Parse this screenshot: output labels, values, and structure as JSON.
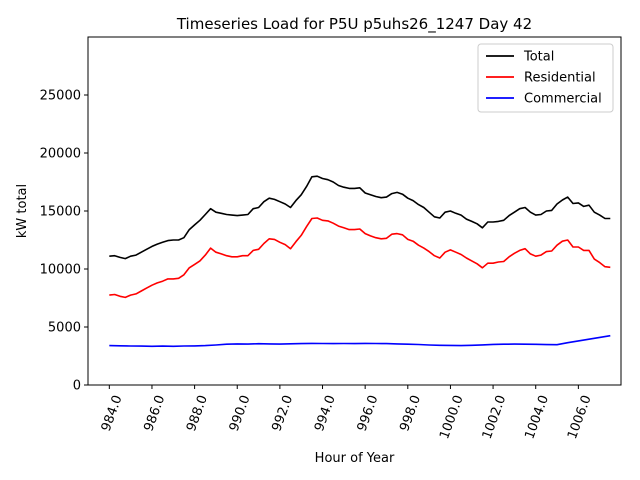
{
  "chart_data": {
    "type": "line",
    "title": "Timeseries Load for P5U p5uhs26_1247  Day 42",
    "xlabel": "Hour of Year",
    "ylabel": "kW total",
    "xlim": [
      983.0,
      1008.0
    ],
    "ylim": [
      0,
      30000
    ],
    "xticks": [
      984.0,
      986.0,
      988.0,
      990.0,
      992.0,
      994.0,
      996.0,
      998.0,
      1000.0,
      1002.0,
      1004.0,
      1006.0
    ],
    "xtick_labels": [
      "984.0",
      "986.0",
      "988.0",
      "990.0",
      "992.0",
      "994.0",
      "996.0",
      "998.0",
      "1000.0",
      "1002.0",
      "1004.0",
      "1006.0"
    ],
    "yticks": [
      0,
      5000,
      10000,
      15000,
      20000,
      25000
    ],
    "ytick_labels": [
      "0",
      "5000",
      "10000",
      "15000",
      "20000",
      "25000"
    ],
    "legend_position": "top-right",
    "series": [
      {
        "name": "Total",
        "color": "#000000",
        "points": [
          [
            984.0,
            11100
          ],
          [
            984.25,
            11150
          ],
          [
            984.5,
            11000
          ],
          [
            984.75,
            10900
          ],
          [
            985.0,
            11100
          ],
          [
            985.25,
            11200
          ],
          [
            985.5,
            11450
          ],
          [
            985.75,
            11700
          ],
          [
            986.0,
            11950
          ],
          [
            986.25,
            12150
          ],
          [
            986.5,
            12300
          ],
          [
            986.75,
            12450
          ],
          [
            987.0,
            12500
          ],
          [
            987.25,
            12500
          ],
          [
            987.5,
            12700
          ],
          [
            987.75,
            13400
          ],
          [
            988.0,
            13800
          ],
          [
            988.25,
            14200
          ],
          [
            988.5,
            14700
          ],
          [
            988.75,
            15200
          ],
          [
            989.0,
            14900
          ],
          [
            989.25,
            14800
          ],
          [
            989.5,
            14700
          ],
          [
            989.75,
            14650
          ],
          [
            990.0,
            14600
          ],
          [
            990.25,
            14650
          ],
          [
            990.5,
            14700
          ],
          [
            990.75,
            15200
          ],
          [
            991.0,
            15300
          ],
          [
            991.25,
            15800
          ],
          [
            991.5,
            16100
          ],
          [
            991.75,
            16000
          ],
          [
            992.0,
            15800
          ],
          [
            992.25,
            15600
          ],
          [
            992.5,
            15300
          ],
          [
            992.75,
            15900
          ],
          [
            993.0,
            16400
          ],
          [
            993.25,
            17100
          ],
          [
            993.5,
            17950
          ],
          [
            993.75,
            18000
          ],
          [
            994.0,
            17800
          ],
          [
            994.25,
            17700
          ],
          [
            994.5,
            17500
          ],
          [
            994.75,
            17200
          ],
          [
            995.0,
            17050
          ],
          [
            995.25,
            16950
          ],
          [
            995.5,
            16950
          ],
          [
            995.75,
            17000
          ],
          [
            996.0,
            16550
          ],
          [
            996.25,
            16400
          ],
          [
            996.5,
            16250
          ],
          [
            996.75,
            16150
          ],
          [
            997.0,
            16200
          ],
          [
            997.25,
            16500
          ],
          [
            997.5,
            16600
          ],
          [
            997.75,
            16450
          ],
          [
            998.0,
            16100
          ],
          [
            998.25,
            15900
          ],
          [
            998.5,
            15550
          ],
          [
            998.75,
            15300
          ],
          [
            999.0,
            14900
          ],
          [
            999.25,
            14500
          ],
          [
            999.5,
            14400
          ],
          [
            999.75,
            14900
          ],
          [
            1000.0,
            15000
          ],
          [
            1000.25,
            14800
          ],
          [
            1000.5,
            14650
          ],
          [
            1000.75,
            14300
          ],
          [
            1001.0,
            14100
          ],
          [
            1001.25,
            13900
          ],
          [
            1001.5,
            13550
          ],
          [
            1001.75,
            14050
          ],
          [
            1002.0,
            14050
          ],
          [
            1002.25,
            14100
          ],
          [
            1002.5,
            14200
          ],
          [
            1002.75,
            14600
          ],
          [
            1003.0,
            14900
          ],
          [
            1003.25,
            15200
          ],
          [
            1003.5,
            15300
          ],
          [
            1003.75,
            14900
          ],
          [
            1004.0,
            14650
          ],
          [
            1004.25,
            14700
          ],
          [
            1004.5,
            15000
          ],
          [
            1004.75,
            15050
          ],
          [
            1005.0,
            15600
          ],
          [
            1005.25,
            15950
          ],
          [
            1005.5,
            16200
          ],
          [
            1005.75,
            15650
          ],
          [
            1006.0,
            15700
          ],
          [
            1006.25,
            15400
          ],
          [
            1006.5,
            15500
          ],
          [
            1006.75,
            14900
          ],
          [
            1007.0,
            14650
          ],
          [
            1007.25,
            14350
          ],
          [
            1007.5,
            14350
          ]
        ]
      },
      {
        "name": "Residential",
        "color": "#ff0000",
        "points": [
          [
            984.0,
            7750
          ],
          [
            984.25,
            7800
          ],
          [
            984.5,
            7650
          ],
          [
            984.75,
            7550
          ],
          [
            985.0,
            7750
          ],
          [
            985.25,
            7850
          ],
          [
            985.5,
            8100
          ],
          [
            985.75,
            8350
          ],
          [
            986.0,
            8600
          ],
          [
            986.25,
            8800
          ],
          [
            986.5,
            8950
          ],
          [
            986.75,
            9150
          ],
          [
            987.0,
            9150
          ],
          [
            987.25,
            9200
          ],
          [
            987.5,
            9500
          ],
          [
            987.75,
            10100
          ],
          [
            988.0,
            10400
          ],
          [
            988.25,
            10700
          ],
          [
            988.5,
            11200
          ],
          [
            988.75,
            11800
          ],
          [
            989.0,
            11450
          ],
          [
            989.25,
            11300
          ],
          [
            989.5,
            11150
          ],
          [
            989.75,
            11050
          ],
          [
            990.0,
            11050
          ],
          [
            990.25,
            11150
          ],
          [
            990.5,
            11150
          ],
          [
            990.75,
            11600
          ],
          [
            991.0,
            11700
          ],
          [
            991.25,
            12200
          ],
          [
            991.5,
            12600
          ],
          [
            991.75,
            12550
          ],
          [
            992.0,
            12300
          ],
          [
            992.25,
            12100
          ],
          [
            992.5,
            11750
          ],
          [
            992.75,
            12350
          ],
          [
            993.0,
            12900
          ],
          [
            993.25,
            13650
          ],
          [
            993.5,
            14350
          ],
          [
            993.75,
            14400
          ],
          [
            994.0,
            14200
          ],
          [
            994.25,
            14150
          ],
          [
            994.5,
            13950
          ],
          [
            994.75,
            13700
          ],
          [
            995.0,
            13550
          ],
          [
            995.25,
            13400
          ],
          [
            995.5,
            13400
          ],
          [
            995.75,
            13450
          ],
          [
            996.0,
            13050
          ],
          [
            996.25,
            12850
          ],
          [
            996.5,
            12700
          ],
          [
            996.75,
            12600
          ],
          [
            997.0,
            12650
          ],
          [
            997.25,
            13000
          ],
          [
            997.5,
            13050
          ],
          [
            997.75,
            12950
          ],
          [
            998.0,
            12550
          ],
          [
            998.25,
            12400
          ],
          [
            998.5,
            12050
          ],
          [
            998.75,
            11800
          ],
          [
            999.0,
            11500
          ],
          [
            999.25,
            11150
          ],
          [
            999.5,
            10950
          ],
          [
            999.75,
            11450
          ],
          [
            1000.0,
            11650
          ],
          [
            1000.25,
            11450
          ],
          [
            1000.5,
            11250
          ],
          [
            1000.75,
            10950
          ],
          [
            1001.0,
            10700
          ],
          [
            1001.25,
            10450
          ],
          [
            1001.5,
            10100
          ],
          [
            1001.75,
            10500
          ],
          [
            1002.0,
            10500
          ],
          [
            1002.25,
            10600
          ],
          [
            1002.5,
            10650
          ],
          [
            1002.75,
            11050
          ],
          [
            1003.0,
            11350
          ],
          [
            1003.25,
            11600
          ],
          [
            1003.5,
            11750
          ],
          [
            1003.75,
            11300
          ],
          [
            1004.0,
            11100
          ],
          [
            1004.25,
            11200
          ],
          [
            1004.5,
            11500
          ],
          [
            1004.75,
            11550
          ],
          [
            1005.0,
            12050
          ],
          [
            1005.25,
            12400
          ],
          [
            1005.5,
            12500
          ],
          [
            1005.75,
            11900
          ],
          [
            1006.0,
            11900
          ],
          [
            1006.25,
            11600
          ],
          [
            1006.5,
            11600
          ],
          [
            1006.75,
            10850
          ],
          [
            1007.0,
            10550
          ],
          [
            1007.25,
            10200
          ],
          [
            1007.5,
            10150
          ]
        ]
      },
      {
        "name": "Commercial",
        "color": "#0000ff",
        "points": [
          [
            984.0,
            3400
          ],
          [
            984.5,
            3380
          ],
          [
            985.0,
            3360
          ],
          [
            985.5,
            3350
          ],
          [
            986.0,
            3340
          ],
          [
            986.5,
            3350
          ],
          [
            987.0,
            3340
          ],
          [
            987.5,
            3360
          ],
          [
            988.0,
            3370
          ],
          [
            988.5,
            3400
          ],
          [
            989.0,
            3450
          ],
          [
            989.5,
            3520
          ],
          [
            990.0,
            3540
          ],
          [
            990.5,
            3530
          ],
          [
            991.0,
            3560
          ],
          [
            991.5,
            3540
          ],
          [
            992.0,
            3530
          ],
          [
            992.5,
            3550
          ],
          [
            993.0,
            3570
          ],
          [
            993.5,
            3590
          ],
          [
            994.0,
            3580
          ],
          [
            994.5,
            3570
          ],
          [
            995.0,
            3580
          ],
          [
            995.5,
            3570
          ],
          [
            996.0,
            3590
          ],
          [
            996.5,
            3580
          ],
          [
            997.0,
            3570
          ],
          [
            997.5,
            3540
          ],
          [
            998.0,
            3520
          ],
          [
            998.5,
            3490
          ],
          [
            999.0,
            3450
          ],
          [
            999.5,
            3420
          ],
          [
            1000.0,
            3410
          ],
          [
            1000.5,
            3400
          ],
          [
            1001.0,
            3420
          ],
          [
            1001.5,
            3460
          ],
          [
            1002.0,
            3500
          ],
          [
            1002.5,
            3520
          ],
          [
            1003.0,
            3530
          ],
          [
            1003.5,
            3520
          ],
          [
            1004.0,
            3510
          ],
          [
            1004.5,
            3480
          ],
          [
            1005.0,
            3470
          ],
          [
            1005.5,
            3650
          ],
          [
            1006.0,
            3800
          ],
          [
            1006.5,
            3950
          ],
          [
            1007.0,
            4100
          ],
          [
            1007.5,
            4250
          ]
        ]
      }
    ]
  }
}
